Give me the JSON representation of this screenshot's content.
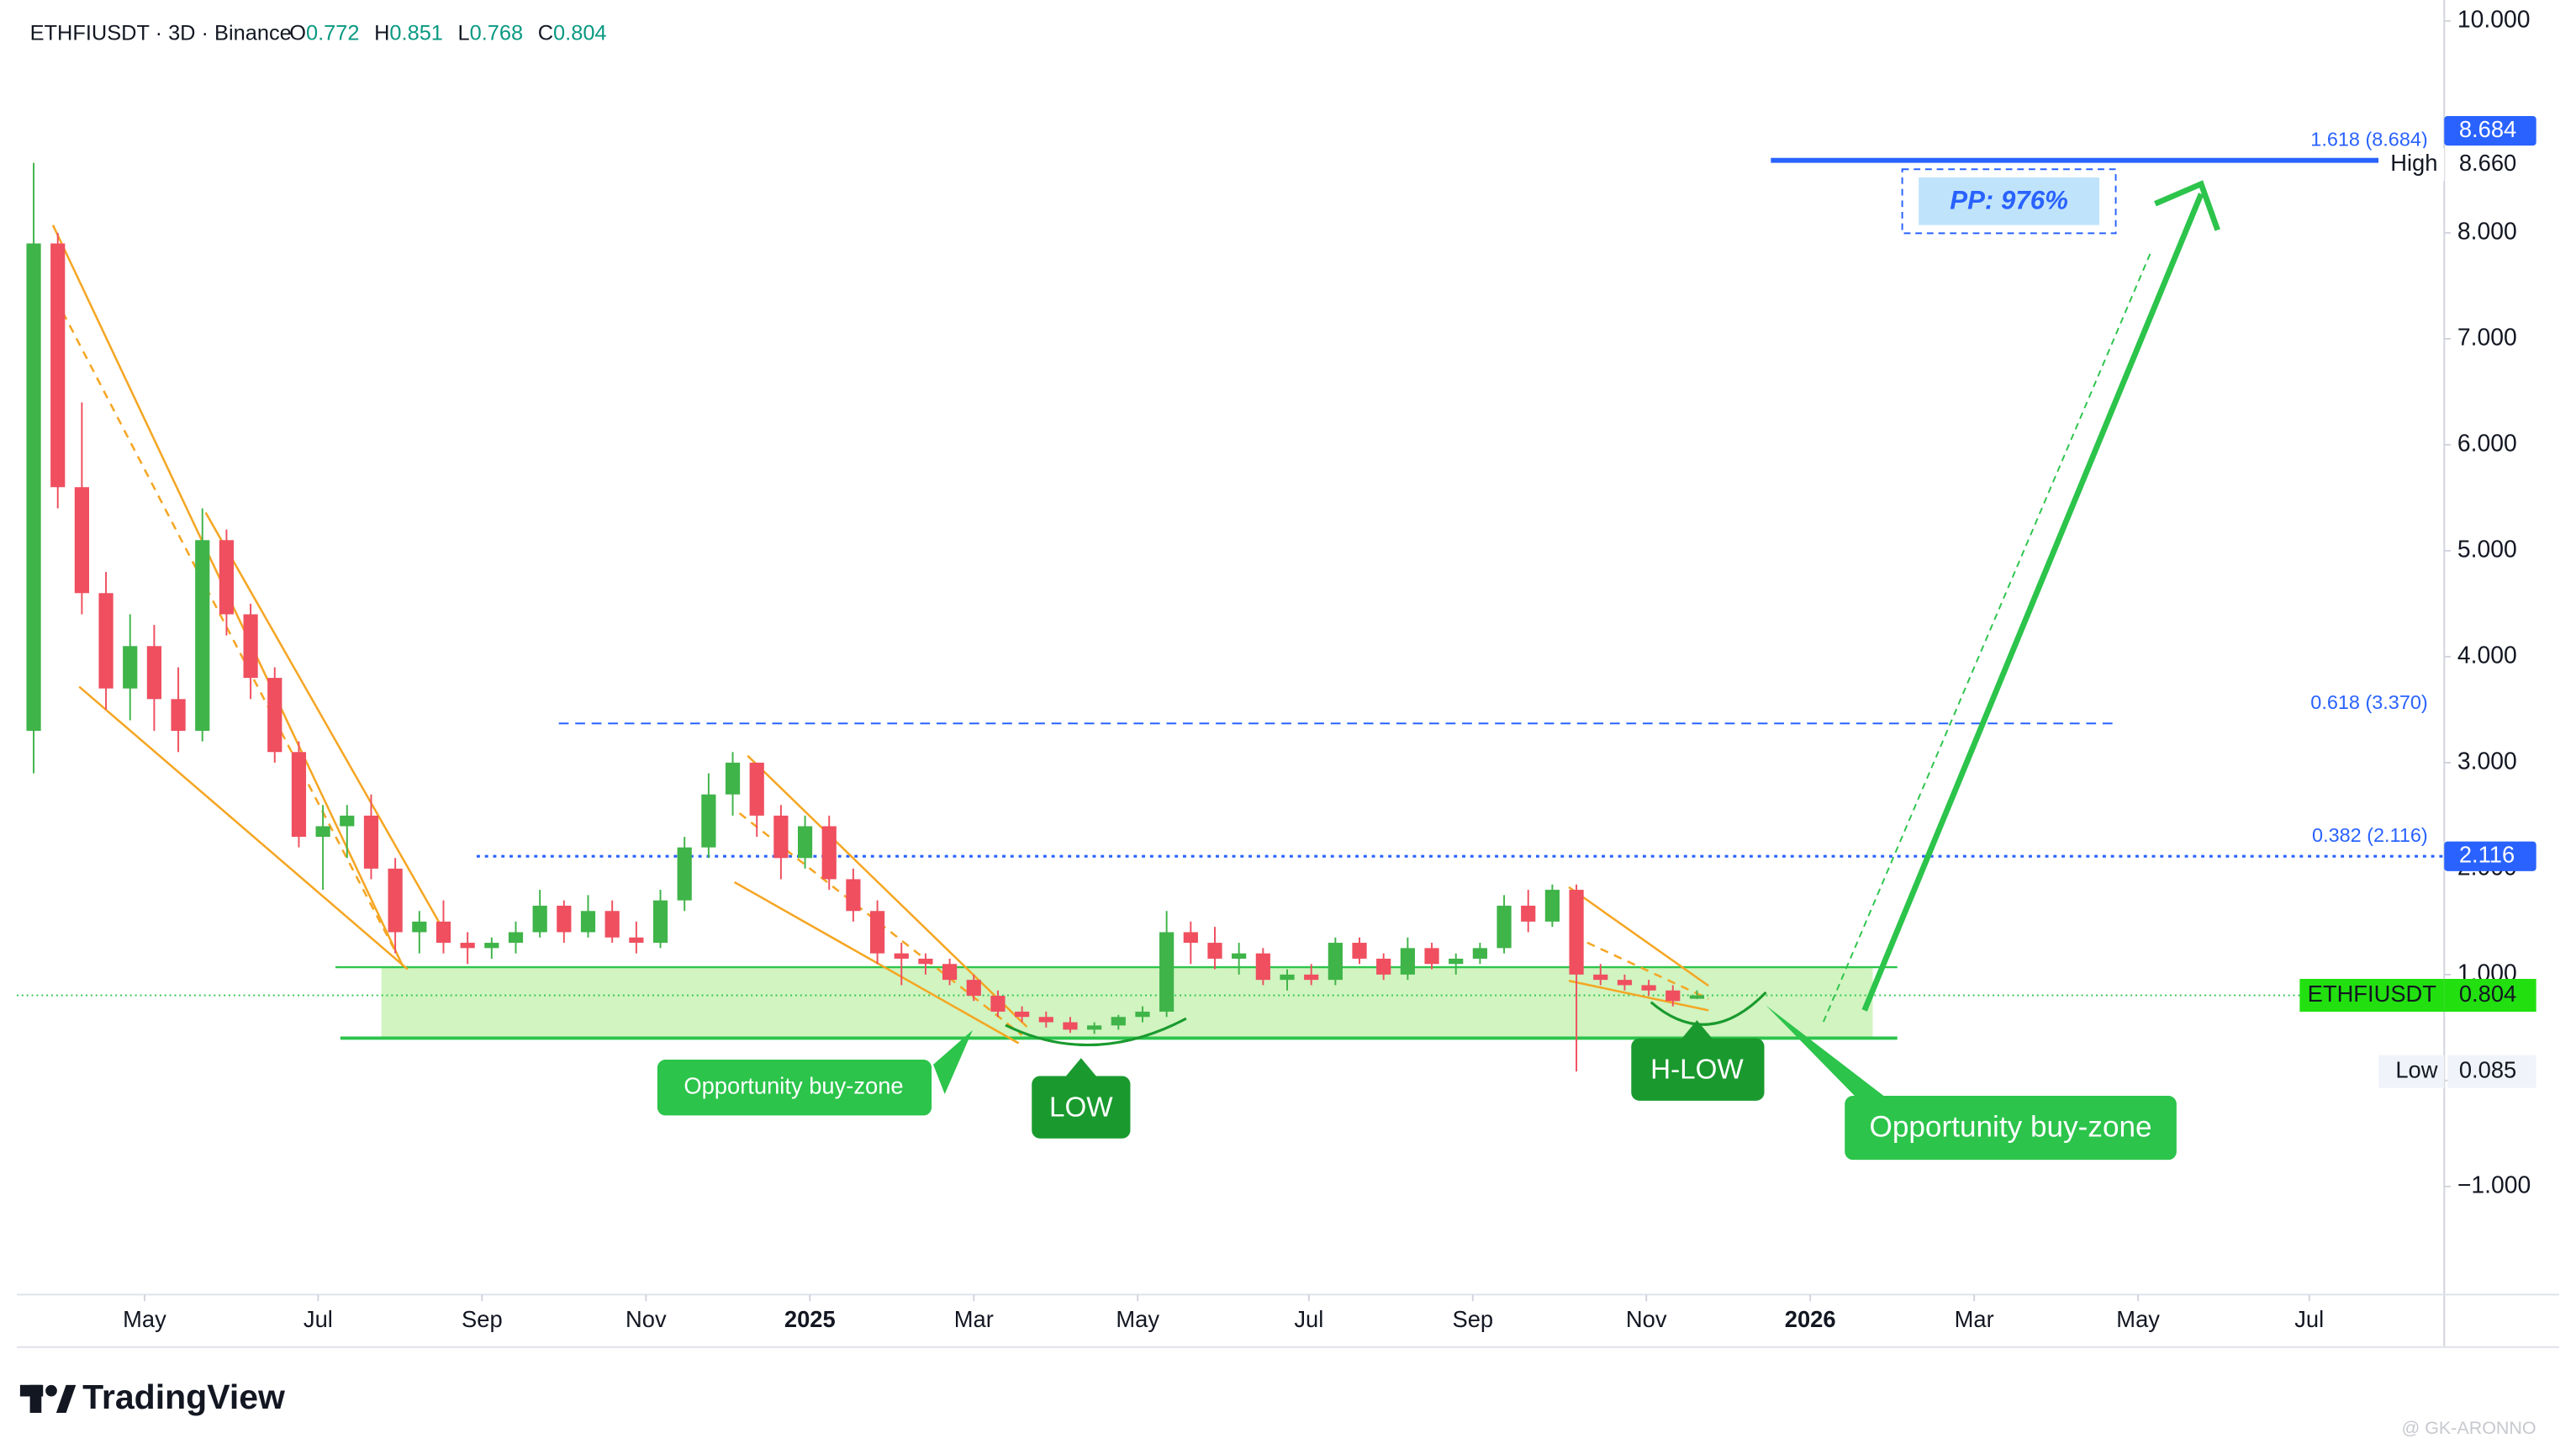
{
  "chart_data": {
    "type": "candlestick",
    "title": "ETHFIUSDT · 3D · Binance",
    "ohlc_labels": [
      "O",
      "H",
      "L",
      "C"
    ],
    "categories": [
      null,
      null,
      null,
      null,
      null,
      null,
      null,
      null,
      null,
      null,
      null,
      null,
      null,
      null,
      null,
      null,
      null,
      null,
      null,
      null,
      null,
      null,
      null,
      null,
      null,
      null,
      null,
      null,
      null,
      null,
      null,
      null,
      null,
      null,
      null,
      null,
      null,
      null,
      null,
      null,
      null,
      null,
      null,
      null,
      null,
      null,
      null,
      null,
      null,
      null,
      null,
      null,
      null,
      null,
      null,
      null,
      null,
      null,
      null,
      null,
      null,
      null,
      null,
      null,
      null,
      null,
      null,
      null,
      null,
      null
    ],
    "series": [
      {
        "name": "ETHFIUSDT",
        "up_color": "#3fb449",
        "down_color": "#ef4f5f",
        "open": [
          3.3,
          7.9,
          5.6,
          4.6,
          3.7,
          4.1,
          3.6,
          3.3,
          5.1,
          4.4,
          3.8,
          3.1,
          2.3,
          2.4,
          2.5,
          2.0,
          1.4,
          1.5,
          1.3,
          1.25,
          1.3,
          1.4,
          1.65,
          1.4,
          1.6,
          1.35,
          1.3,
          1.7,
          2.2,
          2.7,
          3.0,
          2.5,
          2.1,
          2.4,
          1.9,
          1.6,
          1.2,
          1.15,
          1.1,
          0.95,
          0.8,
          0.65,
          0.6,
          0.55,
          0.48,
          0.52,
          0.6,
          0.65,
          1.4,
          1.3,
          1.15,
          1.2,
          0.95,
          1.0,
          0.95,
          1.3,
          1.15,
          1.0,
          1.25,
          1.1,
          1.15,
          1.25,
          1.65,
          1.5,
          1.8,
          1.0,
          0.95,
          0.9,
          0.85,
          0.772
        ],
        "high": [
          8.66,
          8.0,
          6.4,
          4.8,
          4.4,
          4.3,
          3.9,
          5.4,
          5.2,
          4.5,
          3.9,
          3.2,
          2.6,
          2.6,
          2.7,
          2.1,
          1.6,
          1.7,
          1.4,
          1.35,
          1.5,
          1.8,
          1.7,
          1.75,
          1.7,
          1.5,
          1.8,
          2.3,
          2.9,
          3.1,
          3.0,
          2.6,
          2.5,
          2.5,
          2.0,
          1.7,
          1.3,
          1.2,
          1.15,
          1.0,
          0.85,
          0.7,
          0.65,
          0.6,
          0.55,
          0.62,
          0.7,
          1.6,
          1.5,
          1.45,
          1.3,
          1.25,
          1.05,
          1.1,
          1.35,
          1.35,
          1.2,
          1.35,
          1.3,
          1.2,
          1.3,
          1.75,
          1.8,
          1.85,
          1.85,
          1.1,
          1.0,
          0.95,
          0.9,
          0.851
        ],
        "low": [
          2.9,
          5.4,
          4.4,
          3.5,
          3.4,
          3.3,
          3.1,
          3.2,
          4.2,
          3.6,
          3.0,
          2.2,
          1.8,
          2.1,
          1.9,
          1.2,
          1.2,
          1.2,
          1.1,
          1.15,
          1.2,
          1.35,
          1.3,
          1.35,
          1.3,
          1.2,
          1.25,
          1.6,
          2.1,
          2.5,
          2.3,
          1.9,
          2.0,
          1.8,
          1.5,
          1.1,
          0.9,
          1.0,
          0.9,
          0.75,
          0.6,
          0.55,
          0.5,
          0.45,
          0.44,
          0.48,
          0.55,
          0.6,
          1.1,
          1.05,
          1.0,
          0.9,
          0.85,
          0.9,
          0.9,
          1.1,
          0.95,
          0.95,
          1.05,
          1.0,
          1.1,
          1.2,
          1.4,
          1.45,
          0.085,
          0.9,
          0.85,
          0.8,
          0.7,
          0.768
        ],
        "close": [
          7.9,
          5.6,
          4.6,
          3.7,
          4.1,
          3.6,
          3.3,
          5.1,
          4.4,
          3.8,
          3.1,
          2.3,
          2.4,
          2.5,
          2.0,
          1.4,
          1.5,
          1.3,
          1.25,
          1.3,
          1.4,
          1.65,
          1.4,
          1.6,
          1.35,
          1.3,
          1.7,
          2.2,
          2.7,
          3.0,
          2.5,
          2.1,
          2.4,
          1.9,
          1.6,
          1.2,
          1.15,
          1.1,
          0.95,
          0.8,
          0.65,
          0.6,
          0.55,
          0.48,
          0.52,
          0.6,
          0.65,
          1.4,
          1.3,
          1.15,
          1.2,
          0.95,
          1.0,
          0.95,
          1.3,
          1.15,
          1.0,
          1.25,
          1.1,
          1.15,
          1.25,
          1.65,
          1.5,
          1.8,
          1.0,
          0.95,
          0.9,
          0.85,
          0.75,
          0.804
        ]
      }
    ],
    "xlim": [
      -0.7,
      100
    ],
    "xticks": [
      {
        "value": 4.6,
        "label": "May"
      },
      {
        "value": 11.8,
        "label": "Jul"
      },
      {
        "value": 18.6,
        "label": "Sep"
      },
      {
        "value": 25.4,
        "label": "Nov"
      },
      {
        "value": 32.2,
        "label": "2025"
      },
      {
        "value": 39.0,
        "label": "Mar"
      },
      {
        "value": 45.8,
        "label": "May"
      },
      {
        "value": 52.9,
        "label": "Jul"
      },
      {
        "value": 59.7,
        "label": "Sep"
      },
      {
        "value": 66.9,
        "label": "Nov"
      },
      {
        "value": 73.7,
        "label": "2026"
      },
      {
        "value": 80.5,
        "label": "Mar"
      },
      {
        "value": 87.3,
        "label": "May"
      },
      {
        "value": 94.4,
        "label": "Jul"
      }
    ],
    "ylim": [
      -2.02,
      10.12
    ],
    "yticks": [
      {
        "value": 10,
        "label": "10.000"
      },
      {
        "value": 8,
        "label": "8.000"
      },
      {
        "value": 7,
        "label": "7.000"
      },
      {
        "value": 6,
        "label": "6.000"
      },
      {
        "value": 5,
        "label": "5.000"
      },
      {
        "value": 4,
        "label": "4.000"
      },
      {
        "value": 3,
        "label": "3.000"
      },
      {
        "value": 2,
        "label": "2.000"
      },
      {
        "value": 1,
        "label": "1.000"
      },
      {
        "value": 0,
        "label": "0.000"
      },
      {
        "value": -1,
        "label": "−1.000"
      }
    ],
    "levels": [
      {
        "value": 8.684,
        "label": "1.618 (8.684)",
        "color": "#2962ff"
      },
      {
        "value": 3.37,
        "label": "0.618 (3.370)",
        "color": "#2962ff"
      },
      {
        "value": 2.116,
        "label": "0.382 (2.116)",
        "color": "#2962ff"
      }
    ],
    "price_badges": [
      {
        "name": "High",
        "value": 8.66,
        "value_label": "8.660"
      },
      {
        "name": "Low",
        "value": 0.085
      }
    ],
    "buy_zone": {
      "top": 1.07,
      "bottom": 0.4,
      "color": "#7be04a"
    },
    "annotations": [
      "Opportunity buy-zone",
      "LOW",
      "H-LOW",
      "Opportunity buy-zone",
      "PP: 976%"
    ],
    "branding": "TradingView",
    "watermark": "@ GK-ARONNO"
  }
}
